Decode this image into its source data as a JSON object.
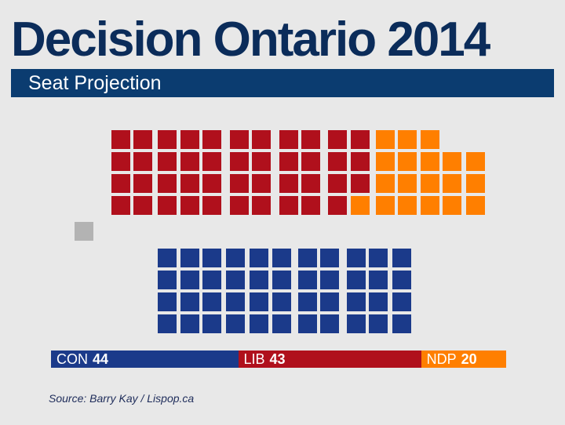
{
  "header": {
    "title": "Decision Ontario 2014",
    "subtitle": "Seat Projection"
  },
  "colors": {
    "title": "#0b2c5a",
    "banner": "#0b3c70",
    "background": "#e8e8e8",
    "CON": "#1b3a8a",
    "LIB": "#b0101c",
    "NDP": "#ff7f00",
    "OTH": "#b3b3b3"
  },
  "chart_data": {
    "type": "seat-plot",
    "title": "Seat Projection",
    "categories": [
      "CON",
      "LIB",
      "NDP",
      "Other"
    ],
    "values": [
      44,
      43,
      20,
      1
    ],
    "total_seats": 108
  },
  "legend": [
    {
      "party": "CON",
      "seats": "44"
    },
    {
      "party": "LIB",
      "seats": "43"
    },
    {
      "party": "NDP",
      "seats": "20"
    }
  ],
  "source": "Source: Barry Kay / Lispop.ca"
}
